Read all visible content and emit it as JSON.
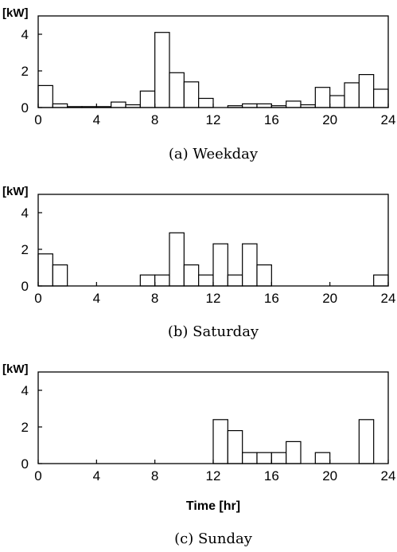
{
  "chart_data": [
    {
      "type": "bar",
      "caption": "(a)  Weekday",
      "ylabel": "[kW]",
      "xlabel": "",
      "xlim": [
        0,
        24
      ],
      "ylim": [
        0,
        5
      ],
      "xticks": [
        "0",
        "4",
        "8",
        "12",
        "16",
        "20",
        "24"
      ],
      "yticks": [
        "0",
        "2",
        "4"
      ],
      "categories": [
        "0",
        "1",
        "2",
        "3",
        "4",
        "5",
        "6",
        "7",
        "8",
        "9",
        "10",
        "11",
        "12",
        "13",
        "14",
        "15",
        "16",
        "17",
        "18",
        "19",
        "20",
        "21",
        "22",
        "23"
      ],
      "values": [
        1.2,
        0.2,
        0.05,
        0.05,
        0.05,
        0.3,
        0.15,
        0.9,
        4.1,
        1.9,
        1.4,
        0.5,
        0.0,
        0.1,
        0.2,
        0.2,
        0.1,
        0.35,
        0.15,
        1.1,
        0.65,
        1.35,
        1.8,
        1.0
      ]
    },
    {
      "type": "bar",
      "caption": "(b)  Saturday",
      "ylabel": "[kW]",
      "xlabel": "",
      "xlim": [
        0,
        24
      ],
      "ylim": [
        0,
        5
      ],
      "xticks": [
        "0",
        "4",
        "8",
        "12",
        "16",
        "20",
        "24"
      ],
      "yticks": [
        "0",
        "2",
        "4"
      ],
      "categories": [
        "0",
        "1",
        "2",
        "3",
        "4",
        "5",
        "6",
        "7",
        "8",
        "9",
        "10",
        "11",
        "12",
        "13",
        "14",
        "15",
        "16",
        "17",
        "18",
        "19",
        "20",
        "21",
        "22",
        "23"
      ],
      "values": [
        1.75,
        1.15,
        0,
        0,
        0,
        0,
        0,
        0.6,
        0.6,
        2.9,
        1.15,
        0.6,
        2.3,
        0.6,
        2.3,
        1.15,
        0,
        0,
        0,
        0,
        0,
        0,
        0,
        0.6
      ]
    },
    {
      "type": "bar",
      "caption": "(c)  Sunday",
      "ylabel": "[kW]",
      "xlabel": "Time [hr]",
      "xlim": [
        0,
        24
      ],
      "ylim": [
        0,
        5
      ],
      "xticks": [
        "0",
        "4",
        "8",
        "12",
        "16",
        "20",
        "24"
      ],
      "yticks": [
        "0",
        "2",
        "4"
      ],
      "categories": [
        "0",
        "1",
        "2",
        "3",
        "4",
        "5",
        "6",
        "7",
        "8",
        "9",
        "10",
        "11",
        "12",
        "13",
        "14",
        "15",
        "16",
        "17",
        "18",
        "19",
        "20",
        "21",
        "22",
        "23"
      ],
      "values": [
        0,
        0,
        0,
        0,
        0,
        0,
        0,
        0,
        0,
        0,
        0,
        0,
        2.4,
        1.8,
        0.6,
        0.6,
        0.6,
        1.2,
        0,
        0.6,
        0,
        0,
        2.4,
        0
      ]
    }
  ]
}
